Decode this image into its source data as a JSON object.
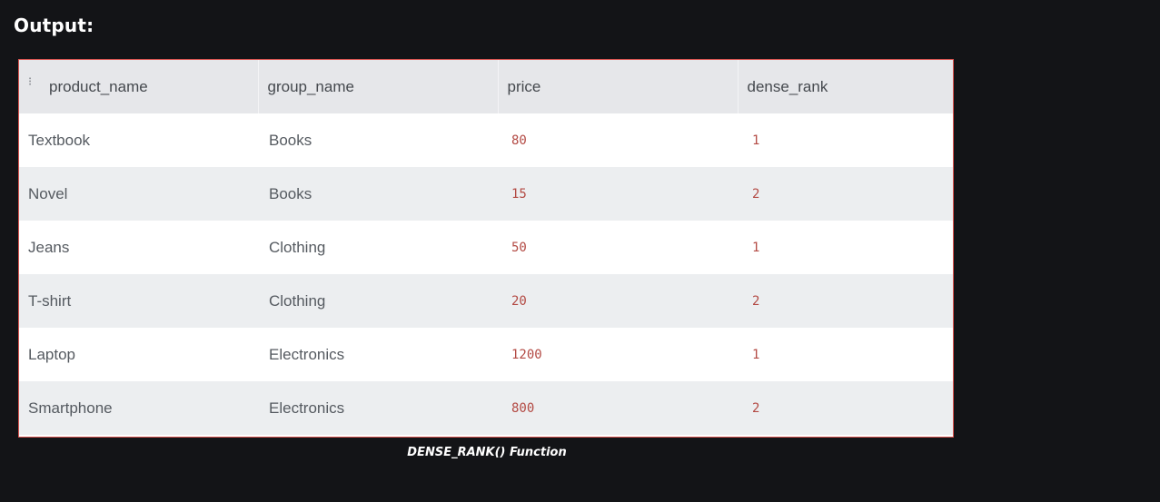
{
  "heading": "Output:",
  "table": {
    "columns": [
      "product_name",
      "group_name",
      "price",
      "dense_rank"
    ],
    "rows": [
      [
        "Textbook",
        "Books",
        "80",
        "1"
      ],
      [
        "Novel",
        "Books",
        "15",
        "2"
      ],
      [
        "Jeans",
        "Clothing",
        "50",
        "1"
      ],
      [
        "T-shirt",
        "Clothing",
        "20",
        "2"
      ],
      [
        "Laptop",
        "Electronics",
        "1200",
        "1"
      ],
      [
        "Smartphone",
        "Electronics",
        "800",
        "2"
      ]
    ]
  },
  "caption": "DENSE_RANK() Function",
  "colors": {
    "background": "#131417",
    "border": "#d9534f",
    "header_bg": "#e6e7ea",
    "row_alt_bg": "#eceef0",
    "number_text": "#b34a44"
  },
  "icons": {
    "column_grip": "vertical-dots-icon"
  }
}
